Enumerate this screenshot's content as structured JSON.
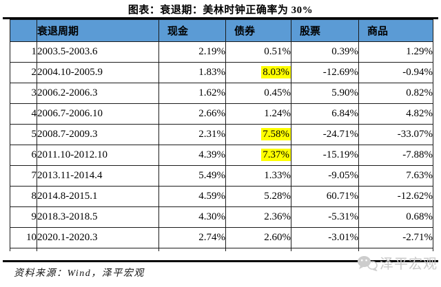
{
  "chart_data": {
    "type": "table",
    "title": "图表：衰退期：美林时钟正确率为 30%",
    "columns": [
      "",
      "衰退周期",
      "现金",
      "债券",
      "股票",
      "商品"
    ],
    "rows": [
      [
        "1",
        "2003.5-2003.6",
        "2.19%",
        "0.51%",
        "0.39%",
        "1.29%"
      ],
      [
        "2",
        "2004.10-2005.9",
        "1.83%",
        "8.03%",
        "-12.69%",
        "-0.94%"
      ],
      [
        "3",
        "2006.2-2006.3",
        "1.62%",
        "0.45%",
        "5.90%",
        "0.82%"
      ],
      [
        "4",
        "2006.7-2006.10",
        "2.66%",
        "1.24%",
        "6.84%",
        "4.82%"
      ],
      [
        "5",
        "2008.7-2009.3",
        "2.31%",
        "7.58%",
        "-24.71%",
        "-33.07%"
      ],
      [
        "6",
        "2011.10-2012.10",
        "4.39%",
        "7.37%",
        "-15.19%",
        "-7.88%"
      ],
      [
        "7",
        "2013.11-2014.4",
        "5.49%",
        "1.33%",
        "-9.05%",
        "7.63%"
      ],
      [
        "8",
        "2014.8-2015.1",
        "4.59%",
        "5.28%",
        "60.71%",
        "-12.62%"
      ],
      [
        "9",
        "2018.3-2018.5",
        "4.30%",
        "2.36%",
        "-5.31%",
        "0.68%"
      ],
      [
        "10",
        "2020.1-2020.3",
        "2.74%",
        "2.60%",
        "-3.01%",
        "-2.71%"
      ]
    ],
    "highlighted_cells": [
      {
        "row": 2,
        "column": "债券",
        "value": "8.03%"
      },
      {
        "row": 5,
        "column": "债券",
        "value": "7.58%"
      },
      {
        "row": 6,
        "column": "债券",
        "value": "7.37%"
      }
    ],
    "source": "资料来源：Wind，泽平宏观",
    "layout_hints": {
      "grid": "on",
      "header_row": true,
      "highlight_meaning": "best-performing asset (bonds) in recession periods"
    }
  },
  "watermark": {
    "label": "泽平宏观",
    "icon": "chat-bubbles-icon"
  },
  "colors": {
    "header_bg": "#5B9BD5",
    "highlight_bg": "#FFFF00",
    "border": "#1a1a1a",
    "watermark": "#c9c9c9",
    "text": "#000000"
  }
}
